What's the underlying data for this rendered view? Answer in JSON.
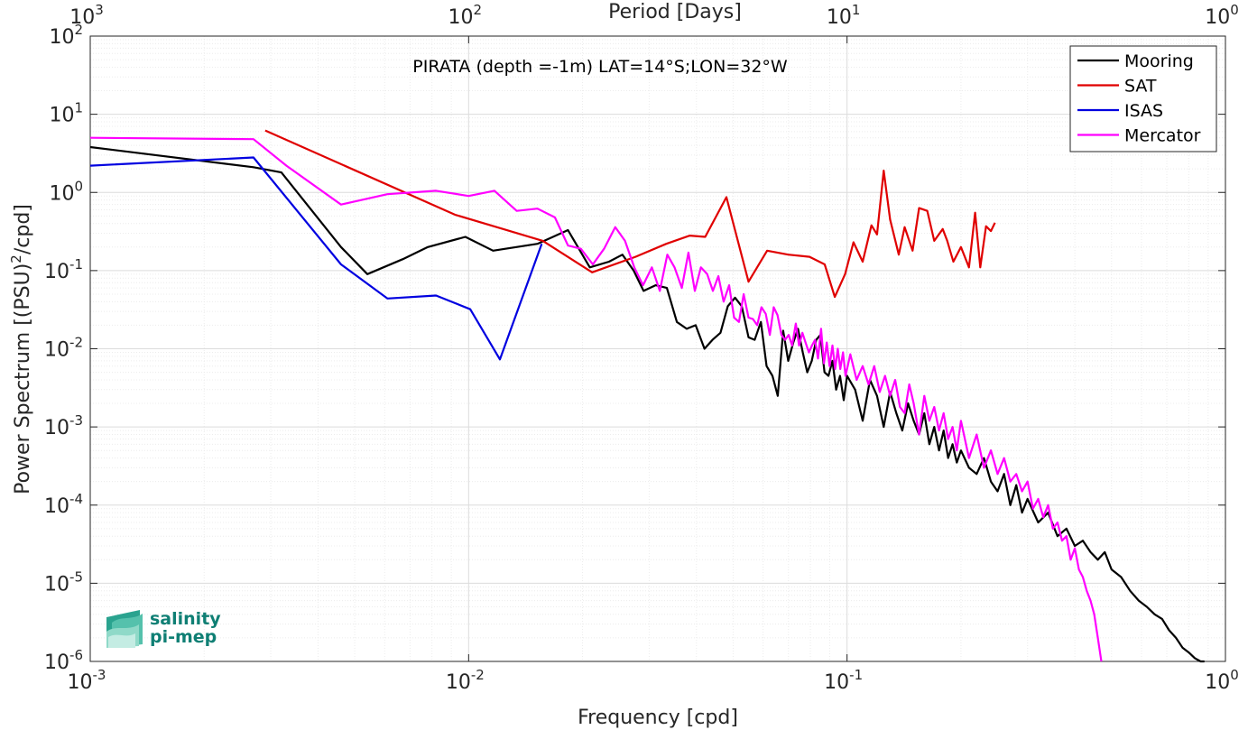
{
  "chart_data": {
    "type": "line",
    "title": "PIRATA (depth =-1m) LAT=14°S;LON=32°W",
    "xlabel": "Frequency [cpd]",
    "ylabel": "Power Spectrum [(PSU)^2/cpd]",
    "ylabel_parts": {
      "main": "Power Spectrum [(PSU)",
      "sup": "2",
      "tail": "/cpd]"
    },
    "x2label": "Period [Days]",
    "xscale": "log",
    "yscale": "log",
    "xlim": [
      0.001,
      1
    ],
    "ylim": [
      1e-06,
      100
    ],
    "grid": true,
    "legend_position": "top-right",
    "x_ticks": [
      {
        "base": "10",
        "exp": "-3"
      },
      {
        "base": "10",
        "exp": "-2"
      },
      {
        "base": "10",
        "exp": "-1"
      },
      {
        "base": "10",
        "exp": "0"
      }
    ],
    "x2_ticks": [
      {
        "base": "10",
        "exp": "3"
      },
      {
        "base": "10",
        "exp": "2"
      },
      {
        "base": "10",
        "exp": "1"
      },
      {
        "base": "10",
        "exp": "0"
      }
    ],
    "y_ticks": [
      {
        "base": "10",
        "exp": "2"
      },
      {
        "base": "10",
        "exp": "1"
      },
      {
        "base": "10",
        "exp": "0"
      },
      {
        "base": "10",
        "exp": "-1"
      },
      {
        "base": "10",
        "exp": "-2"
      },
      {
        "base": "10",
        "exp": "-3"
      },
      {
        "base": "10",
        "exp": "-4"
      },
      {
        "base": "10",
        "exp": "-5"
      },
      {
        "base": "10",
        "exp": "-6"
      }
    ],
    "series": [
      {
        "name": "Mooring",
        "color": "#000000",
        "x": [
          0.001,
          0.0027,
          0.0032,
          0.0046,
          0.0054,
          0.0067,
          0.0078,
          0.0098,
          0.0116,
          0.0152,
          0.0183,
          0.0209,
          0.0235,
          0.0255,
          0.0273,
          0.029,
          0.0312,
          0.0334,
          0.0355,
          0.0377,
          0.0398,
          0.042,
          0.0441,
          0.0463,
          0.0484,
          0.0506,
          0.0527,
          0.0549,
          0.057,
          0.0592,
          0.0613,
          0.0635,
          0.0656,
          0.0678,
          0.0699,
          0.0721,
          0.0742,
          0.0764,
          0.0785,
          0.0807,
          0.0829,
          0.085,
          0.0872,
          0.0893,
          0.0915,
          0.0936,
          0.0958,
          0.098,
          0.1,
          0.105,
          0.11,
          0.115,
          0.12,
          0.125,
          0.13,
          0.135,
          0.14,
          0.145,
          0.15,
          0.155,
          0.16,
          0.165,
          0.17,
          0.175,
          0.18,
          0.185,
          0.19,
          0.195,
          0.2,
          0.21,
          0.22,
          0.23,
          0.24,
          0.25,
          0.26,
          0.27,
          0.28,
          0.29,
          0.3,
          0.32,
          0.34,
          0.36,
          0.38,
          0.4,
          0.42,
          0.44,
          0.46,
          0.48,
          0.5,
          0.53,
          0.56,
          0.59,
          0.62,
          0.65,
          0.68,
          0.71,
          0.74,
          0.77,
          0.8,
          0.83,
          0.86,
          0.88
        ],
        "y": [
          3.8,
          2.1,
          1.8,
          0.2,
          0.09,
          0.14,
          0.2,
          0.27,
          0.18,
          0.22,
          0.33,
          0.11,
          0.13,
          0.16,
          0.1,
          0.055,
          0.065,
          0.06,
          0.022,
          0.018,
          0.02,
          0.01,
          0.013,
          0.016,
          0.035,
          0.045,
          0.035,
          0.014,
          0.013,
          0.022,
          0.006,
          0.0045,
          0.0025,
          0.017,
          0.007,
          0.012,
          0.018,
          0.009,
          0.005,
          0.007,
          0.013,
          0.015,
          0.005,
          0.0045,
          0.007,
          0.003,
          0.0045,
          0.0022,
          0.0045,
          0.003,
          0.0012,
          0.004,
          0.0025,
          0.001,
          0.0028,
          0.0015,
          0.0009,
          0.002,
          0.0012,
          0.0008,
          0.0015,
          0.0006,
          0.001,
          0.0005,
          0.0009,
          0.0004,
          0.0006,
          0.00035,
          0.0005,
          0.0003,
          0.00025,
          0.0004,
          0.0002,
          0.00015,
          0.00025,
          0.0001,
          0.00018,
          8e-05,
          0.00012,
          6e-05,
          8e-05,
          4e-05,
          5e-05,
          3e-05,
          3.5e-05,
          2.5e-05,
          2e-05,
          2.5e-05,
          1.5e-05,
          1.2e-05,
          8e-06,
          6e-06,
          5e-06,
          4e-06,
          3.5e-06,
          2.5e-06,
          2e-06,
          1.5e-06,
          1.3e-06,
          1.1e-06,
          1e-06,
          1e-06
        ]
      },
      {
        "name": "SAT",
        "color": "#e00000",
        "x": [
          0.0029,
          0.0092,
          0.0157,
          0.0212,
          0.0276,
          0.0333,
          0.0384,
          0.0422,
          0.048,
          0.0549,
          0.0615,
          0.0699,
          0.0796,
          0.0873,
          0.0928,
          0.0988,
          0.104,
          0.11,
          0.116,
          0.12,
          0.125,
          0.13,
          0.137,
          0.142,
          0.149,
          0.155,
          0.163,
          0.17,
          0.179,
          0.184,
          0.191,
          0.2,
          0.21,
          0.218,
          0.225,
          0.233,
          0.24,
          0.246
        ],
        "y": [
          6.2,
          0.52,
          0.24,
          0.095,
          0.15,
          0.22,
          0.28,
          0.27,
          0.87,
          0.072,
          0.18,
          0.16,
          0.15,
          0.12,
          0.046,
          0.09,
          0.23,
          0.13,
          0.38,
          0.29,
          1.9,
          0.45,
          0.16,
          0.36,
          0.18,
          0.63,
          0.58,
          0.24,
          0.34,
          0.24,
          0.13,
          0.2,
          0.11,
          0.55,
          0.11,
          0.37,
          0.32,
          0.41
        ]
      },
      {
        "name": "ISAS",
        "color": "#0000e0",
        "x": [
          0.001,
          0.0027,
          0.0046,
          0.0061,
          0.0082,
          0.0101,
          0.0121,
          0.0156
        ],
        "y": [
          2.2,
          2.8,
          0.12,
          0.044,
          0.048,
          0.032,
          0.0073,
          0.22
        ]
      },
      {
        "name": "Mercator",
        "color": "#ff00ff",
        "x": [
          0.001,
          0.0027,
          0.0033,
          0.0046,
          0.0061,
          0.0082,
          0.01,
          0.0117,
          0.0134,
          0.0152,
          0.0169,
          0.0183,
          0.0198,
          0.0213,
          0.0228,
          0.0244,
          0.0259,
          0.0274,
          0.0289,
          0.0305,
          0.032,
          0.0335,
          0.035,
          0.0366,
          0.0381,
          0.0396,
          0.0411,
          0.0427,
          0.0442,
          0.0457,
          0.0472,
          0.0488,
          0.0503,
          0.0518,
          0.0533,
          0.0549,
          0.0564,
          0.0579,
          0.0594,
          0.061,
          0.0625,
          0.064,
          0.0655,
          0.0671,
          0.0686,
          0.0701,
          0.0716,
          0.0732,
          0.0747,
          0.0762,
          0.0777,
          0.0793,
          0.0808,
          0.0823,
          0.0838,
          0.0854,
          0.0869,
          0.0884,
          0.0899,
          0.0915,
          0.093,
          0.0945,
          0.096,
          0.0976,
          0.0991,
          0.102,
          0.106,
          0.11,
          0.114,
          0.118,
          0.122,
          0.126,
          0.13,
          0.134,
          0.138,
          0.142,
          0.146,
          0.15,
          0.155,
          0.16,
          0.165,
          0.17,
          0.175,
          0.18,
          0.185,
          0.19,
          0.195,
          0.2,
          0.21,
          0.22,
          0.23,
          0.24,
          0.25,
          0.26,
          0.27,
          0.28,
          0.29,
          0.3,
          0.31,
          0.32,
          0.33,
          0.34,
          0.35,
          0.36,
          0.37,
          0.38,
          0.39,
          0.4,
          0.41,
          0.42,
          0.43,
          0.44,
          0.45,
          0.46,
          0.47
        ],
        "y": [
          5,
          4.8,
          2.2,
          0.7,
          0.95,
          1.05,
          0.9,
          1.05,
          0.58,
          0.62,
          0.48,
          0.21,
          0.19,
          0.12,
          0.19,
          0.36,
          0.24,
          0.11,
          0.065,
          0.11,
          0.055,
          0.16,
          0.11,
          0.06,
          0.17,
          0.055,
          0.11,
          0.09,
          0.055,
          0.085,
          0.04,
          0.065,
          0.025,
          0.022,
          0.05,
          0.025,
          0.024,
          0.02,
          0.034,
          0.028,
          0.015,
          0.034,
          0.027,
          0.015,
          0.013,
          0.015,
          0.011,
          0.021,
          0.011,
          0.016,
          0.012,
          0.009,
          0.011,
          0.013,
          0.0075,
          0.018,
          0.0065,
          0.012,
          0.006,
          0.011,
          0.0055,
          0.01,
          0.0055,
          0.009,
          0.0045,
          0.0085,
          0.004,
          0.006,
          0.0035,
          0.006,
          0.0028,
          0.0045,
          0.0025,
          0.004,
          0.0018,
          0.0015,
          0.0035,
          0.002,
          0.0008,
          0.0025,
          0.0012,
          0.0018,
          0.0009,
          0.0015,
          0.0007,
          0.001,
          0.0005,
          0.0012,
          0.0004,
          0.0008,
          0.0003,
          0.0005,
          0.00025,
          0.0004,
          0.0002,
          0.00025,
          0.00015,
          0.0002,
          9e-05,
          0.00012,
          7e-05,
          0.0001,
          5e-05,
          6e-05,
          3.5e-05,
          4e-05,
          2e-05,
          2.8e-05,
          1.5e-05,
          1.2e-05,
          8e-06,
          6e-06,
          4e-06,
          2e-06,
          1e-06
        ]
      }
    ]
  },
  "logo": {
    "line1": "salinity",
    "line2": "pi-mep"
  }
}
